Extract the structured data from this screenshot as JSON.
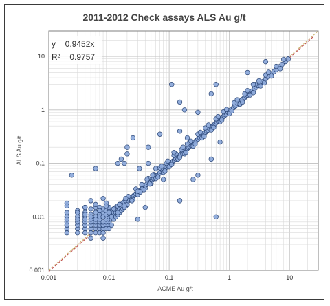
{
  "chart_data": {
    "type": "scatter",
    "title": "2011-2012 Check assays ALS Au g/t",
    "xlabel": "ACME Au g/t",
    "ylabel": "ALS Au g/t",
    "x_scale": "log",
    "y_scale": "log",
    "xlim": [
      0.001,
      30
    ],
    "ylim": [
      0.001,
      30
    ],
    "x_ticks": [
      0.001,
      0.01,
      0.1,
      1,
      10
    ],
    "y_ticks": [
      0.001,
      0.01,
      0.1,
      1,
      10
    ],
    "x_tick_labels": [
      "0.001",
      "0.01",
      "0.1",
      "1",
      "10"
    ],
    "y_tick_labels": [
      "0.001",
      "0.01",
      "0.1",
      "1",
      "10"
    ],
    "grid": true,
    "trendline": {
      "equation": "y = 0.9452x",
      "r_squared": "R² = 0.9757",
      "slope": 0.9452
    },
    "colors": {
      "marker_fill": "#8eaadb",
      "marker_stroke": "#2f4a7a",
      "trendline": "#c0504d",
      "diagonal": "#c9b36a",
      "grid": "#d9d9d9"
    },
    "series": [
      {
        "x": [
          0.002,
          0.002,
          0.002,
          0.002,
          0.002,
          0.003,
          0.003,
          0.003,
          0.003,
          0.003,
          0.004,
          0.004,
          0.004,
          0.004,
          0.004,
          0.004,
          0.005,
          0.005,
          0.005,
          0.005,
          0.005,
          0.005,
          0.006,
          0.006,
          0.006,
          0.006,
          0.006,
          0.006,
          0.007,
          0.007,
          0.007,
          0.007,
          0.007,
          0.007,
          0.008,
          0.008,
          0.008,
          0.008,
          0.008,
          0.008,
          0.009,
          0.009,
          0.009,
          0.009,
          0.009,
          0.01,
          0.01,
          0.01,
          0.01,
          0.01,
          0.01,
          0.011,
          0.011,
          0.011,
          0.012,
          0.012,
          0.012,
          0.012,
          0.013,
          0.013,
          0.013,
          0.014,
          0.014,
          0.014,
          0.015,
          0.015,
          0.015,
          0.016,
          0.016,
          0.017,
          0.017,
          0.018,
          0.018,
          0.019,
          0.019,
          0.02,
          0.02,
          0.021,
          0.022,
          0.023,
          0.024,
          0.025,
          0.026,
          0.027,
          0.028,
          0.03,
          0.031,
          0.033,
          0.035,
          0.036,
          0.038,
          0.04,
          0.042,
          0.045,
          0.047,
          0.05,
          0.052,
          0.055,
          0.058,
          0.06,
          0.063,
          0.066,
          0.07,
          0.074,
          0.078,
          0.082,
          0.086,
          0.09,
          0.095,
          0.1,
          0.105,
          0.11,
          0.116,
          0.122,
          0.128,
          0.135,
          0.142,
          0.15,
          0.158,
          0.166,
          0.175,
          0.184,
          0.194,
          0.2,
          0.21,
          0.22,
          0.23,
          0.245,
          0.26,
          0.27,
          0.285,
          0.3,
          0.32,
          0.34,
          0.36,
          0.38,
          0.4,
          0.42,
          0.44,
          0.47,
          0.5,
          0.52,
          0.55,
          0.58,
          0.62,
          0.65,
          0.7,
          0.74,
          0.78,
          0.82,
          0.86,
          0.9,
          0.95,
          1.0,
          1.05,
          1.1,
          1.17,
          1.25,
          1.3,
          1.4,
          1.5,
          1.6,
          1.7,
          1.8,
          1.9,
          2.0,
          2.2,
          2.4,
          2.6,
          2.8,
          3.0,
          3.3,
          3.6,
          4.0,
          4.4,
          5.0,
          5.5,
          6.0,
          6.8,
          7.5,
          8.5,
          9.5,
          0.012,
          0.015,
          0.018,
          0.021,
          0.025,
          0.03,
          0.035,
          0.04,
          0.045,
          0.05,
          0.055,
          0.06,
          0.07,
          0.08,
          0.09,
          0.1,
          0.12,
          0.14,
          0.16,
          0.18,
          0.2,
          0.25,
          0.3,
          0.35,
          0.4,
          0.5,
          0.6,
          0.7,
          0.8,
          1.0,
          1.2,
          1.5,
          1.8,
          2.2,
          2.7,
          3.3,
          4.0,
          5.0,
          6.0,
          7.0,
          8.0,
          0.011,
          0.014,
          0.019,
          0.024,
          0.028,
          0.033,
          0.038,
          0.043,
          0.048,
          0.053,
          0.065,
          0.075,
          0.085,
          0.095,
          0.11,
          0.13,
          0.15,
          0.17,
          0.19,
          0.22,
          0.27,
          0.33,
          0.38,
          0.45,
          0.55,
          0.65,
          0.75,
          0.9,
          1.1,
          1.35,
          1.65,
          2.0,
          2.5,
          3.1,
          3.8,
          4.5,
          0.002,
          0.002,
          0.002,
          0.003,
          0.003,
          0.004,
          0.004,
          0.005,
          0.005,
          0.006,
          0.006,
          0.007,
          0.007,
          0.008,
          0.008,
          0.009,
          0.009,
          0.01,
          0.01,
          0.011,
          0.002,
          0.003,
          0.004,
          0.005,
          0.006,
          0.007,
          0.008,
          0.009,
          0.0024,
          0.006,
          0.014,
          0.016,
          0.018,
          0.02,
          0.02,
          0.025,
          0.03,
          0.032,
          0.045,
          0.045,
          0.07,
          0.11,
          0.12,
          0.15,
          0.15,
          0.15,
          0.18,
          0.2,
          0.23,
          0.25,
          0.3,
          0.3,
          0.5,
          0.5,
          0.6,
          0.6,
          0.7,
          2.0,
          2.5,
          4.0,
          0.005,
          0.006,
          0.008,
          0.01,
          0.003,
          0.004,
          0.007,
          0.009,
          0.03,
          0.04,
          0.06,
          0.08
        ],
        "y": [
          0.006,
          0.008,
          0.01,
          0.012,
          0.018,
          0.006,
          0.007,
          0.008,
          0.01,
          0.012,
          0.006,
          0.007,
          0.008,
          0.01,
          0.012,
          0.015,
          0.006,
          0.007,
          0.008,
          0.009,
          0.011,
          0.014,
          0.006,
          0.007,
          0.008,
          0.01,
          0.012,
          0.015,
          0.006,
          0.007,
          0.008,
          0.009,
          0.011,
          0.013,
          0.006,
          0.007,
          0.008,
          0.01,
          0.012,
          0.014,
          0.007,
          0.008,
          0.009,
          0.011,
          0.013,
          0.007,
          0.008,
          0.009,
          0.01,
          0.011,
          0.013,
          0.009,
          0.011,
          0.013,
          0.009,
          0.011,
          0.012,
          0.014,
          0.01,
          0.012,
          0.015,
          0.011,
          0.013,
          0.016,
          0.012,
          0.014,
          0.017,
          0.013,
          0.016,
          0.014,
          0.018,
          0.015,
          0.019,
          0.016,
          0.02,
          0.017,
          0.021,
          0.02,
          0.021,
          0.022,
          0.023,
          0.024,
          0.025,
          0.026,
          0.027,
          0.029,
          0.03,
          0.031,
          0.033,
          0.034,
          0.036,
          0.038,
          0.04,
          0.043,
          0.044,
          0.047,
          0.049,
          0.052,
          0.055,
          0.057,
          0.06,
          0.062,
          0.066,
          0.07,
          0.074,
          0.077,
          0.081,
          0.085,
          0.09,
          0.094,
          0.099,
          0.104,
          0.11,
          0.115,
          0.121,
          0.128,
          0.134,
          0.142,
          0.149,
          0.157,
          0.165,
          0.174,
          0.183,
          0.189,
          0.198,
          0.208,
          0.217,
          0.232,
          0.246,
          0.255,
          0.269,
          0.283,
          0.302,
          0.321,
          0.34,
          0.359,
          0.378,
          0.397,
          0.416,
          0.444,
          0.472,
          0.492,
          0.52,
          0.548,
          0.586,
          0.614,
          0.662,
          0.699,
          0.737,
          0.775,
          0.813,
          0.85,
          0.898,
          0.945,
          0.992,
          1.04,
          1.1,
          1.18,
          1.23,
          1.32,
          1.42,
          1.51,
          1.61,
          1.7,
          1.8,
          1.89,
          2.08,
          2.27,
          2.46,
          2.65,
          2.84,
          3.12,
          3.4,
          3.78,
          4.16,
          4.73,
          5.2,
          5.67,
          6.43,
          7.09,
          8.03,
          8.98,
          0.014,
          0.017,
          0.016,
          0.024,
          0.021,
          0.026,
          0.04,
          0.034,
          0.052,
          0.042,
          0.062,
          0.052,
          0.082,
          0.068,
          0.1,
          0.086,
          0.14,
          0.12,
          0.18,
          0.15,
          0.23,
          0.21,
          0.35,
          0.3,
          0.46,
          0.42,
          0.68,
          0.6,
          0.92,
          0.85,
          1.36,
          1.28,
          2.0,
          1.9,
          3.0,
          2.8,
          4.5,
          4.3,
          6.5,
          5.9,
          8.8,
          0.01,
          0.012,
          0.022,
          0.02,
          0.033,
          0.029,
          0.032,
          0.05,
          0.041,
          0.06,
          0.055,
          0.088,
          0.072,
          0.11,
          0.095,
          0.15,
          0.13,
          0.2,
          0.16,
          0.25,
          0.23,
          0.38,
          0.32,
          0.52,
          0.47,
          0.75,
          0.65,
          1.02,
          0.95,
          1.55,
          1.4,
          2.3,
          2.1,
          3.5,
          3.2,
          5.1,
          0.005,
          0.007,
          0.009,
          0.005,
          0.009,
          0.005,
          0.009,
          0.005,
          0.01,
          0.005,
          0.009,
          0.005,
          0.01,
          0.005,
          0.01,
          0.006,
          0.011,
          0.006,
          0.012,
          0.007,
          0.016,
          0.013,
          0.011,
          0.02,
          0.017,
          0.015,
          0.022,
          0.018,
          0.06,
          0.08,
          0.1,
          0.12,
          0.1,
          0.15,
          0.2,
          0.3,
          0.03,
          0.08,
          0.1,
          0.2,
          0.35,
          3.0,
          0.16,
          1.4,
          0.02,
          0.4,
          1.0,
          0.3,
          0.26,
          0.05,
          0.06,
          0.9,
          0.12,
          2.0,
          0.01,
          3.0,
          0.25,
          5.0,
          3.0,
          8.0,
          0.004,
          0.009,
          0.004,
          0.015,
          0.012,
          0.015,
          0.013,
          0.016,
          0.009,
          0.015,
          0.08,
          0.05
        ]
      }
    ]
  }
}
